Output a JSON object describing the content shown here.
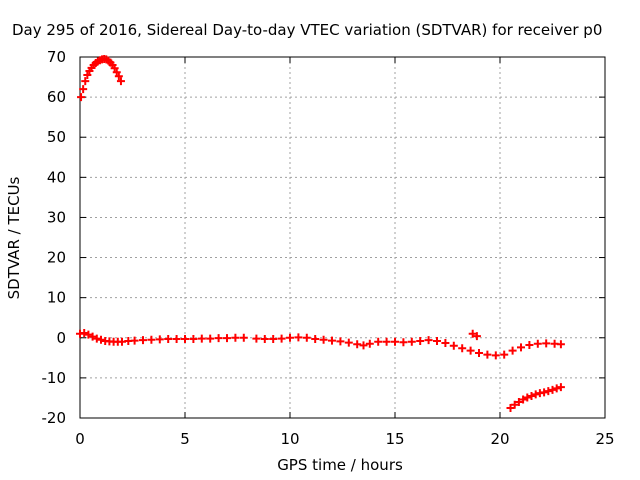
{
  "chart_data": {
    "type": "scatter",
    "title": "Day 295 of 2016, Sidereal Day-to-day VTEC variation (SDTVAR) for receiver p0",
    "xlabel": "GPS time / hours",
    "ylabel": "SDTVAR / TECUs",
    "xlim": [
      0,
      25
    ],
    "ylim": [
      -20,
      70
    ],
    "x_ticks": [
      "0",
      "5",
      "10",
      "15",
      "20",
      "25"
    ],
    "y_ticks": [
      "-20",
      "-10",
      "0",
      "10",
      "20",
      "30",
      "40",
      "50",
      "60",
      "70"
    ],
    "grid": true,
    "marker": "plus",
    "color": "#ff0000",
    "series": [
      {
        "name": "arc-early-high",
        "points": [
          [
            0.05,
            60
          ],
          [
            0.15,
            62
          ],
          [
            0.25,
            64
          ],
          [
            0.35,
            65.5
          ],
          [
            0.45,
            66.5
          ],
          [
            0.55,
            67.3
          ],
          [
            0.65,
            68
          ],
          [
            0.75,
            68.5
          ],
          [
            0.85,
            68.9
          ],
          [
            0.95,
            69.2
          ],
          [
            1.05,
            69.4
          ],
          [
            1.15,
            69.5
          ],
          [
            1.25,
            69.4
          ],
          [
            1.35,
            69.1
          ],
          [
            1.45,
            68.6
          ],
          [
            1.55,
            68
          ],
          [
            1.65,
            67.2
          ],
          [
            1.75,
            66.2
          ],
          [
            1.85,
            65.2
          ],
          [
            1.95,
            64
          ]
        ]
      },
      {
        "name": "main-near-zero",
        "points": [
          [
            0.0,
            1
          ],
          [
            0.2,
            1.2
          ],
          [
            0.4,
            0.8
          ],
          [
            0.6,
            0.3
          ],
          [
            0.8,
            -0.2
          ],
          [
            1.0,
            -0.5
          ],
          [
            1.2,
            -0.8
          ],
          [
            1.4,
            -0.9
          ],
          [
            1.6,
            -1
          ],
          [
            1.8,
            -1
          ],
          [
            2.0,
            -1
          ],
          [
            2.3,
            -0.8
          ],
          [
            2.6,
            -0.7
          ],
          [
            3.0,
            -0.6
          ],
          [
            3.4,
            -0.5
          ],
          [
            3.8,
            -0.4
          ],
          [
            4.2,
            -0.3
          ],
          [
            4.6,
            -0.3
          ],
          [
            5.0,
            -0.3
          ],
          [
            5.4,
            -0.3
          ],
          [
            5.8,
            -0.2
          ],
          [
            6.2,
            -0.2
          ],
          [
            6.6,
            -0.1
          ],
          [
            7.0,
            -0.1
          ],
          [
            7.4,
            0
          ],
          [
            7.8,
            0
          ],
          [
            8.4,
            -0.2
          ],
          [
            8.8,
            -0.3
          ],
          [
            9.2,
            -0.3
          ],
          [
            9.6,
            -0.2
          ],
          [
            10.0,
            0
          ],
          [
            10.4,
            0.1
          ],
          [
            10.8,
            0
          ],
          [
            11.2,
            -0.3
          ],
          [
            11.6,
            -0.5
          ],
          [
            12.0,
            -0.7
          ],
          [
            12.4,
            -0.9
          ],
          [
            12.8,
            -1.2
          ],
          [
            13.2,
            -1.6
          ],
          [
            13.5,
            -1.9
          ],
          [
            13.8,
            -1.5
          ],
          [
            14.2,
            -1
          ],
          [
            14.6,
            -1
          ],
          [
            15.0,
            -1
          ],
          [
            15.4,
            -1.1
          ],
          [
            15.8,
            -1
          ],
          [
            16.2,
            -0.8
          ],
          [
            16.6,
            -0.6
          ],
          [
            17.0,
            -0.8
          ],
          [
            17.4,
            -1.3
          ],
          [
            17.8,
            -2
          ],
          [
            18.2,
            -2.6
          ],
          [
            18.6,
            -3.2
          ],
          [
            19.0,
            -3.8
          ],
          [
            19.4,
            -4.2
          ],
          [
            19.8,
            -4.4
          ],
          [
            20.2,
            -4.2
          ],
          [
            20.6,
            -3.2
          ],
          [
            21.0,
            -2.4
          ],
          [
            21.4,
            -1.8
          ],
          [
            21.8,
            -1.5
          ],
          [
            22.2,
            -1.4
          ],
          [
            22.6,
            -1.5
          ],
          [
            22.9,
            -1.6
          ]
        ]
      },
      {
        "name": "arc-late-low",
        "points": [
          [
            18.7,
            1
          ],
          [
            18.9,
            0.4
          ],
          [
            20.5,
            -17.5
          ],
          [
            20.7,
            -16.7
          ],
          [
            20.9,
            -16
          ],
          [
            21.1,
            -15.4
          ],
          [
            21.3,
            -14.9
          ],
          [
            21.5,
            -14.5
          ],
          [
            21.7,
            -14.1
          ],
          [
            21.9,
            -13.8
          ],
          [
            22.1,
            -13.6
          ],
          [
            22.3,
            -13.3
          ],
          [
            22.5,
            -13
          ],
          [
            22.7,
            -12.6
          ],
          [
            22.9,
            -12.3
          ]
        ]
      }
    ]
  }
}
